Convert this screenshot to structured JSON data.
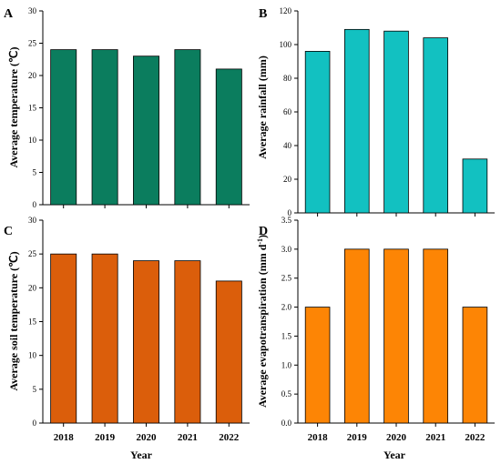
{
  "chart_data": [
    {
      "panel": "A",
      "type": "bar",
      "categories": [
        "2018",
        "2019",
        "2020",
        "2021",
        "2022"
      ],
      "values": [
        24,
        24,
        23,
        24,
        21
      ],
      "ylabel": "Average temperature (℃)",
      "xlabel": "",
      "ylim": [
        0,
        30
      ],
      "yticks": [
        "0",
        "5",
        "10",
        "15",
        "20",
        "25",
        "30"
      ],
      "color": "#0b7d5e",
      "show_xticks": false
    },
    {
      "panel": "B",
      "type": "bar",
      "categories": [
        "2018",
        "2019",
        "2020",
        "2021",
        "2022"
      ],
      "values": [
        96,
        109,
        108,
        104,
        32
      ],
      "ylabel": "Average rainfall (mm)",
      "xlabel": "",
      "ylim": [
        0,
        120
      ],
      "yticks": [
        "0",
        "20",
        "40",
        "60",
        "80",
        "100",
        "120"
      ],
      "color": "#12c1c1",
      "show_xticks": false
    },
    {
      "panel": "C",
      "type": "bar",
      "categories": [
        "2018",
        "2019",
        "2020",
        "2021",
        "2022"
      ],
      "values": [
        25,
        25,
        24,
        24,
        21
      ],
      "ylabel": "Average soil temperature (℃)",
      "xlabel": "Year",
      "ylim": [
        0,
        30
      ],
      "yticks": [
        "0",
        "5",
        "10",
        "15",
        "20",
        "25",
        "30"
      ],
      "color": "#db5e0b",
      "show_xticks": true
    },
    {
      "panel": "D",
      "type": "bar",
      "categories": [
        "2018",
        "2019",
        "2020",
        "2021",
        "2022"
      ],
      "values": [
        2.0,
        3.0,
        3.0,
        3.0,
        2.0
      ],
      "ylabel": "Average evapotranspiration (mm d",
      "ylabel_sup": "-1",
      "ylabel_end": ")",
      "xlabel": "Year",
      "ylim": [
        0,
        3.5
      ],
      "yticks": [
        "0.0",
        "0.5",
        "1.0",
        "1.5",
        "2.0",
        "2.5",
        "3.0",
        "3.5"
      ],
      "color": "#fd8505",
      "show_xticks": true
    }
  ]
}
